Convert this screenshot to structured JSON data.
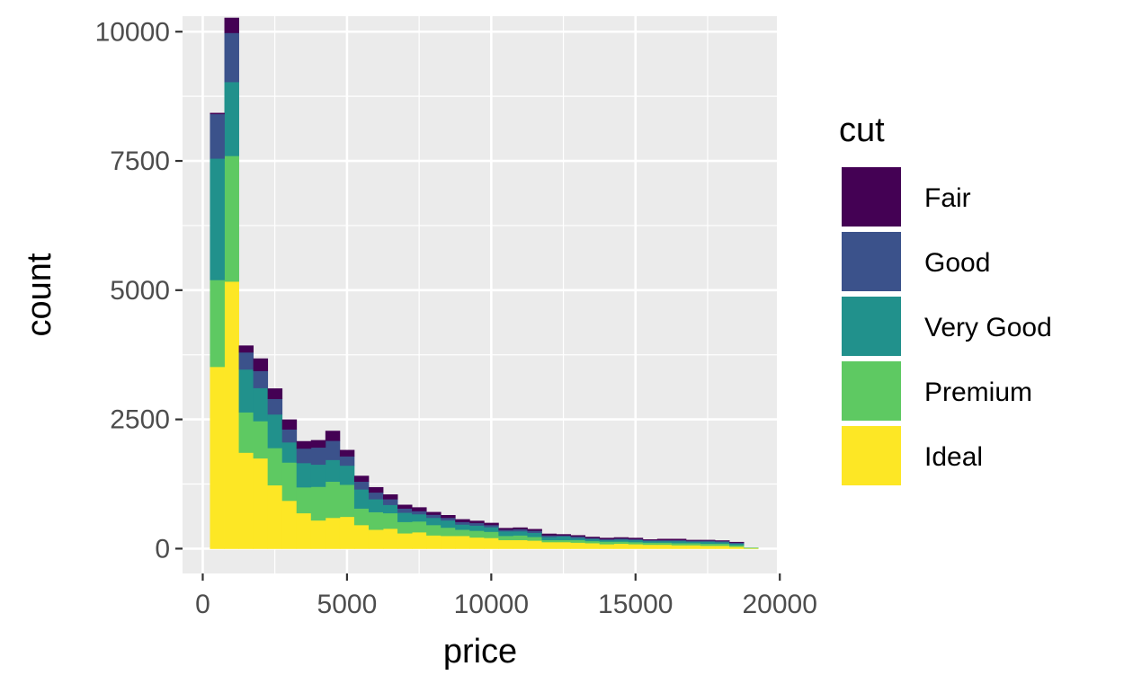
{
  "chart_data": {
    "type": "bar",
    "subtype": "stacked-histogram",
    "xlabel": "price",
    "ylabel": "count",
    "xlim": [
      -700,
      19900
    ],
    "ylim": [
      -480,
      10300
    ],
    "x_ticks": [
      0,
      5000,
      10000,
      15000,
      20000
    ],
    "y_ticks": [
      0,
      2500,
      5000,
      7500,
      10000
    ],
    "x_tick_labels": [
      "0",
      "5000",
      "10000",
      "15000",
      "20000"
    ],
    "y_tick_labels": [
      "0",
      "2500",
      "5000",
      "7500",
      "10000"
    ],
    "x_minor_ticks": [
      2500,
      7500,
      12500,
      17500
    ],
    "y_minor_ticks": [
      1250,
      3750,
      6250,
      8750
    ],
    "background": "#ebebeb",
    "grid": true,
    "legend": {
      "title": "cut",
      "position": "right"
    },
    "bin_width": 500,
    "bin_starts": [
      250,
      750,
      1250,
      1750,
      2250,
      2750,
      3250,
      3750,
      4250,
      4750,
      5250,
      5750,
      6250,
      6750,
      7250,
      7750,
      8250,
      8750,
      9250,
      9750,
      10250,
      10750,
      11250,
      11750,
      12250,
      12750,
      13250,
      13750,
      14250,
      14750,
      15250,
      15750,
      16250,
      16750,
      17250,
      17750,
      18250,
      18750
    ],
    "series": [
      {
        "name": "Ideal",
        "color": "#fde725",
        "values": [
          3520,
          5170,
          1860,
          1750,
          1230,
          930,
          690,
          550,
          600,
          620,
          460,
          370,
          390,
          300,
          320,
          260,
          250,
          250,
          220,
          210,
          170,
          170,
          160,
          130,
          130,
          120,
          110,
          90,
          100,
          90,
          80,
          80,
          70,
          70,
          60,
          60,
          40,
          10
        ]
      },
      {
        "name": "Premium",
        "color": "#5ec962",
        "values": [
          1680,
          2430,
          780,
          720,
          720,
          740,
          500,
          650,
          700,
          620,
          320,
          340,
          300,
          220,
          210,
          200,
          160,
          120,
          130,
          120,
          80,
          90,
          70,
          40,
          40,
          50,
          40,
          50,
          40,
          40,
          40,
          40,
          40,
          40,
          40,
          40,
          30,
          10
        ]
      },
      {
        "name": "Very Good",
        "color": "#21918c",
        "values": [
          2350,
          1430,
          830,
          640,
          650,
          390,
          470,
          430,
          420,
          370,
          370,
          250,
          160,
          180,
          140,
          140,
          140,
          100,
          100,
          90,
          90,
          80,
          80,
          60,
          70,
          40,
          40,
          30,
          40,
          40,
          30,
          30,
          40,
          30,
          40,
          30,
          30,
          0
        ]
      },
      {
        "name": "Good",
        "color": "#3b528b",
        "values": [
          860,
          950,
          330,
          330,
          300,
          250,
          280,
          330,
          370,
          180,
          150,
          130,
          110,
          80,
          60,
          60,
          50,
          50,
          50,
          40,
          30,
          40,
          40,
          30,
          20,
          30,
          20,
          20,
          20,
          20,
          20,
          20,
          20,
          20,
          20,
          20,
          20,
          0
        ]
      },
      {
        "name": "Fair",
        "color": "#440154",
        "values": [
          20,
          290,
          130,
          240,
          200,
          190,
          140,
          140,
          190,
          120,
          110,
          100,
          90,
          70,
          70,
          50,
          50,
          50,
          40,
          40,
          30,
          30,
          30,
          30,
          20,
          20,
          20,
          20,
          20,
          20,
          10,
          20,
          20,
          10,
          10,
          10,
          10,
          0
        ]
      }
    ]
  }
}
